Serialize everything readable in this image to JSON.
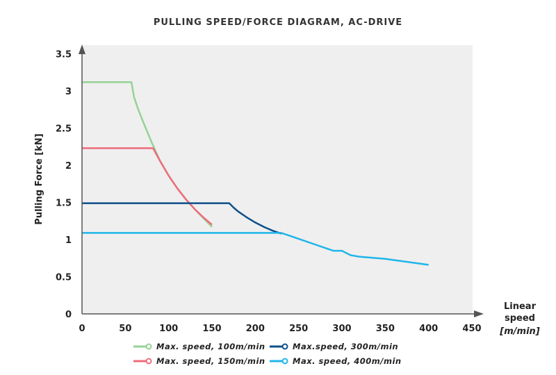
{
  "chart_data": {
    "type": "line",
    "title": "PULLING SPEED/FORCE DIAGRAM, AC-DRIVE",
    "xlabel": [
      "Linear",
      "speed",
      "[m/min]"
    ],
    "ylabel": "Pulling Force [kN]",
    "xlim": [
      0,
      450
    ],
    "ylim": [
      0,
      3.5
    ],
    "xticks": [
      0,
      50,
      100,
      150,
      200,
      250,
      300,
      350,
      400,
      450
    ],
    "yticks": [
      0,
      0.5,
      1,
      1.5,
      2,
      2.5,
      3,
      3.5
    ],
    "grid": false,
    "legend_position": "bottom",
    "background": "#efefef",
    "series": [
      {
        "name": "Max. speed, 100m/min",
        "color": "#95d295",
        "x": [
          0,
          57,
          60,
          65,
          70,
          80,
          90,
          100,
          110,
          120,
          130,
          140,
          150
        ],
        "y": [
          3.12,
          3.12,
          2.92,
          2.75,
          2.6,
          2.32,
          2.06,
          1.86,
          1.69,
          1.54,
          1.41,
          1.29,
          1.17
        ]
      },
      {
        "name": "Max. speed, 150m/min",
        "color": "#ef6b7b",
        "x": [
          0,
          82,
          90,
          100,
          110,
          120,
          130,
          140,
          150
        ],
        "y": [
          2.23,
          2.23,
          2.06,
          1.86,
          1.69,
          1.54,
          1.41,
          1.3,
          1.2
        ]
      },
      {
        "name": "Max.speed, 300m/min",
        "color": "#0d4f8b",
        "x": [
          0,
          170,
          175,
          180,
          190,
          200,
          210,
          220,
          230
        ],
        "y": [
          1.49,
          1.49,
          1.43,
          1.38,
          1.3,
          1.23,
          1.17,
          1.12,
          1.08
        ]
      },
      {
        "name": "Max. speed, 400m/min",
        "color": "#1fb5ea",
        "x": [
          0,
          230,
          240,
          250,
          260,
          270,
          280,
          290,
          300,
          305,
          310,
          320,
          350,
          400
        ],
        "y": [
          1.09,
          1.09,
          1.05,
          1.01,
          0.97,
          0.93,
          0.89,
          0.85,
          0.85,
          0.82,
          0.79,
          0.77,
          0.74,
          0.66
        ]
      }
    ]
  }
}
